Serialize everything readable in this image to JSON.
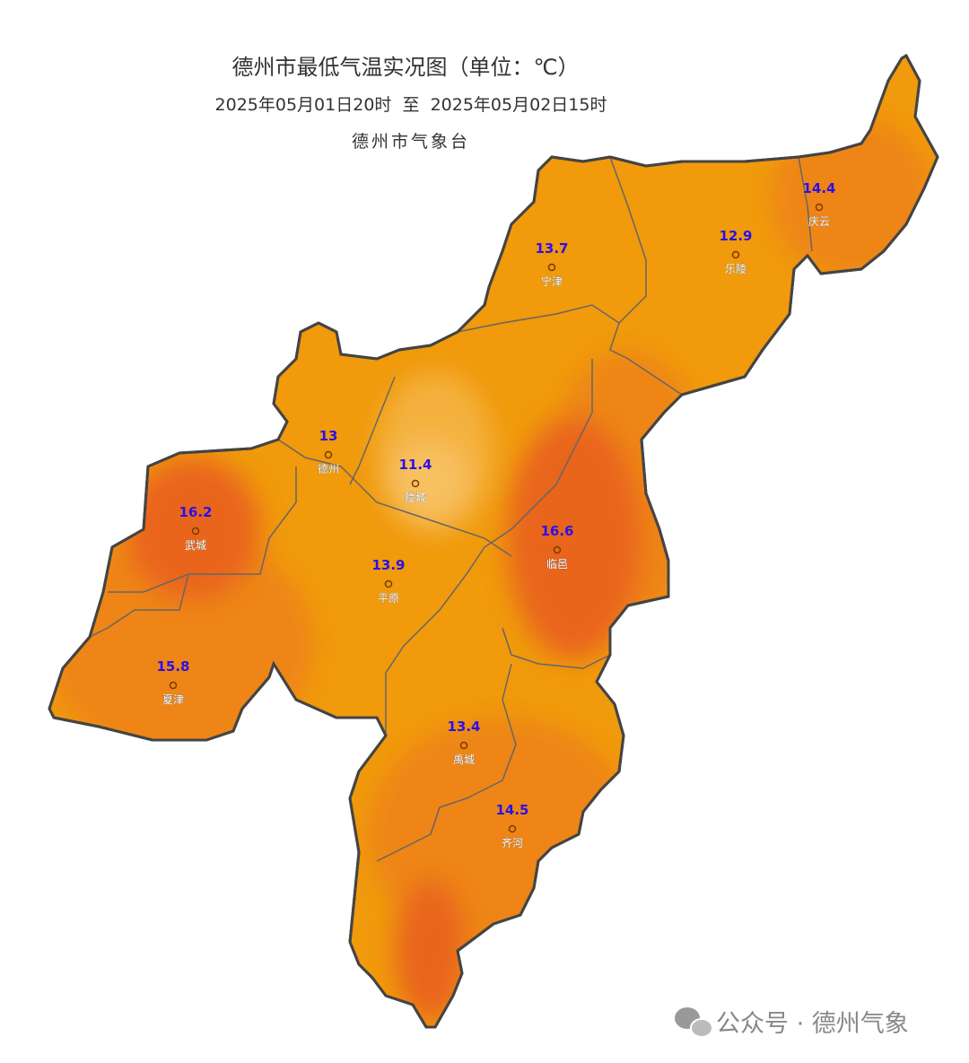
{
  "header": {
    "title": "德州市最低气温实况图（单位：℃）",
    "subtitle": "2025年05月01日20时  至  2025年05月02日15时",
    "source": "德州市气象台"
  },
  "stations": [
    {
      "name": "庆云",
      "value": 14.4
    },
    {
      "name": "乐陵",
      "value": 12.9
    },
    {
      "name": "宁津",
      "value": 13.7
    },
    {
      "name": "德州",
      "value": 13
    },
    {
      "name": "陵城",
      "value": 11.4
    },
    {
      "name": "武城",
      "value": 16.2
    },
    {
      "name": "临邑",
      "value": 16.6
    },
    {
      "name": "平原",
      "value": 13.9
    },
    {
      "name": "夏津",
      "value": 15.8
    },
    {
      "name": "禹城",
      "value": 13.4
    },
    {
      "name": "齐河",
      "value": 14.5
    }
  ],
  "watermark": "公众号 · 德州气象"
}
